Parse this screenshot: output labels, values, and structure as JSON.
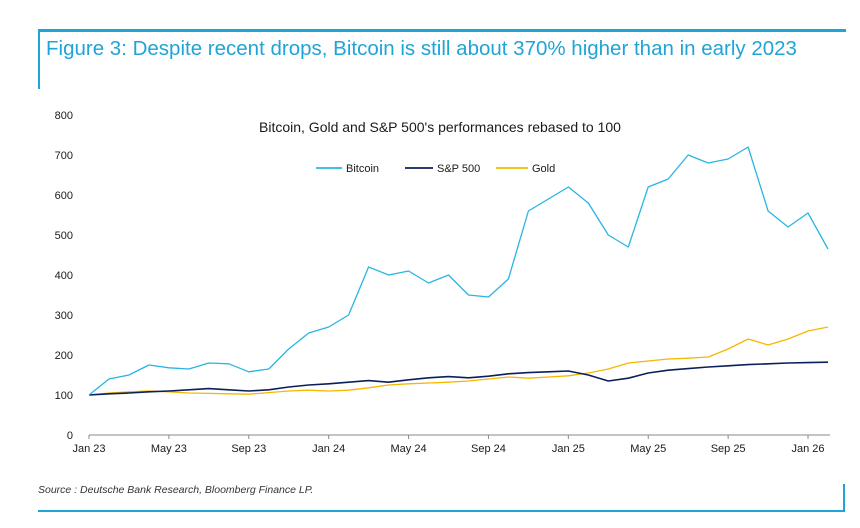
{
  "figure": {
    "title": "Figure 3: Despite recent drops, Bitcoin is still about 370% higher than in early 2023",
    "source": "Source : Deutsche Bank Research, Bloomberg Finance LP."
  },
  "colors": {
    "accent": "#1fa4d8",
    "bitcoin": "#29b5e3",
    "sp500": "#0b1f5c",
    "gold": "#f5b800"
  },
  "chart_data": {
    "type": "line",
    "title": "Bitcoin, Gold and S&P 500's performances rebased to 100",
    "xlabel": "",
    "ylabel": "",
    "ylim": [
      0,
      800
    ],
    "yticks": [
      "0",
      "100",
      "200",
      "300",
      "400",
      "500",
      "600",
      "700",
      "800"
    ],
    "xlim": [
      "2023-01",
      "2026-02"
    ],
    "xticks": [
      "Jan 23",
      "May 23",
      "Sep 23",
      "Jan 24",
      "May 24",
      "Sep 24",
      "Jan 25",
      "May 25",
      "Sep 25",
      "Jan 26"
    ],
    "grid": false,
    "legend_position": "top-center",
    "x": [
      "2023-01",
      "2023-02",
      "2023-03",
      "2023-04",
      "2023-05",
      "2023-06",
      "2023-07",
      "2023-08",
      "2023-09",
      "2023-10",
      "2023-11",
      "2023-12",
      "2024-01",
      "2024-02",
      "2024-03",
      "2024-04",
      "2024-05",
      "2024-06",
      "2024-07",
      "2024-08",
      "2024-09",
      "2024-10",
      "2024-11",
      "2024-12",
      "2025-01",
      "2025-02",
      "2025-03",
      "2025-04",
      "2025-05",
      "2025-06",
      "2025-07",
      "2025-08",
      "2025-09",
      "2025-10",
      "2025-11",
      "2025-12",
      "2026-01",
      "2026-02"
    ],
    "series": [
      {
        "name": "Bitcoin",
        "color": "#29b5e3",
        "values": [
          100,
          140,
          150,
          175,
          168,
          165,
          180,
          178,
          158,
          165,
          215,
          255,
          270,
          300,
          420,
          400,
          410,
          380,
          400,
          350,
          345,
          390,
          560,
          590,
          620,
          580,
          500,
          470,
          620,
          640,
          700,
          680,
          690,
          720,
          560,
          520,
          555,
          465
        ]
      },
      {
        "name": "S&P 500",
        "color": "#0b1f5c",
        "values": [
          100,
          103,
          105,
          108,
          110,
          113,
          116,
          113,
          110,
          113,
          120,
          125,
          128,
          132,
          136,
          132,
          138,
          143,
          146,
          143,
          147,
          153,
          156,
          158,
          160,
          150,
          135,
          142,
          155,
          162,
          166,
          170,
          173,
          176,
          178,
          180,
          181,
          182
        ]
      },
      {
        "name": "Gold",
        "color": "#f5b800",
        "values": [
          100,
          105,
          108,
          110,
          108,
          105,
          104,
          103,
          102,
          106,
          110,
          112,
          110,
          112,
          118,
          125,
          128,
          130,
          132,
          135,
          140,
          145,
          142,
          145,
          148,
          155,
          165,
          180,
          185,
          190,
          192,
          195,
          215,
          240,
          225,
          240,
          260,
          270
        ]
      }
    ]
  }
}
